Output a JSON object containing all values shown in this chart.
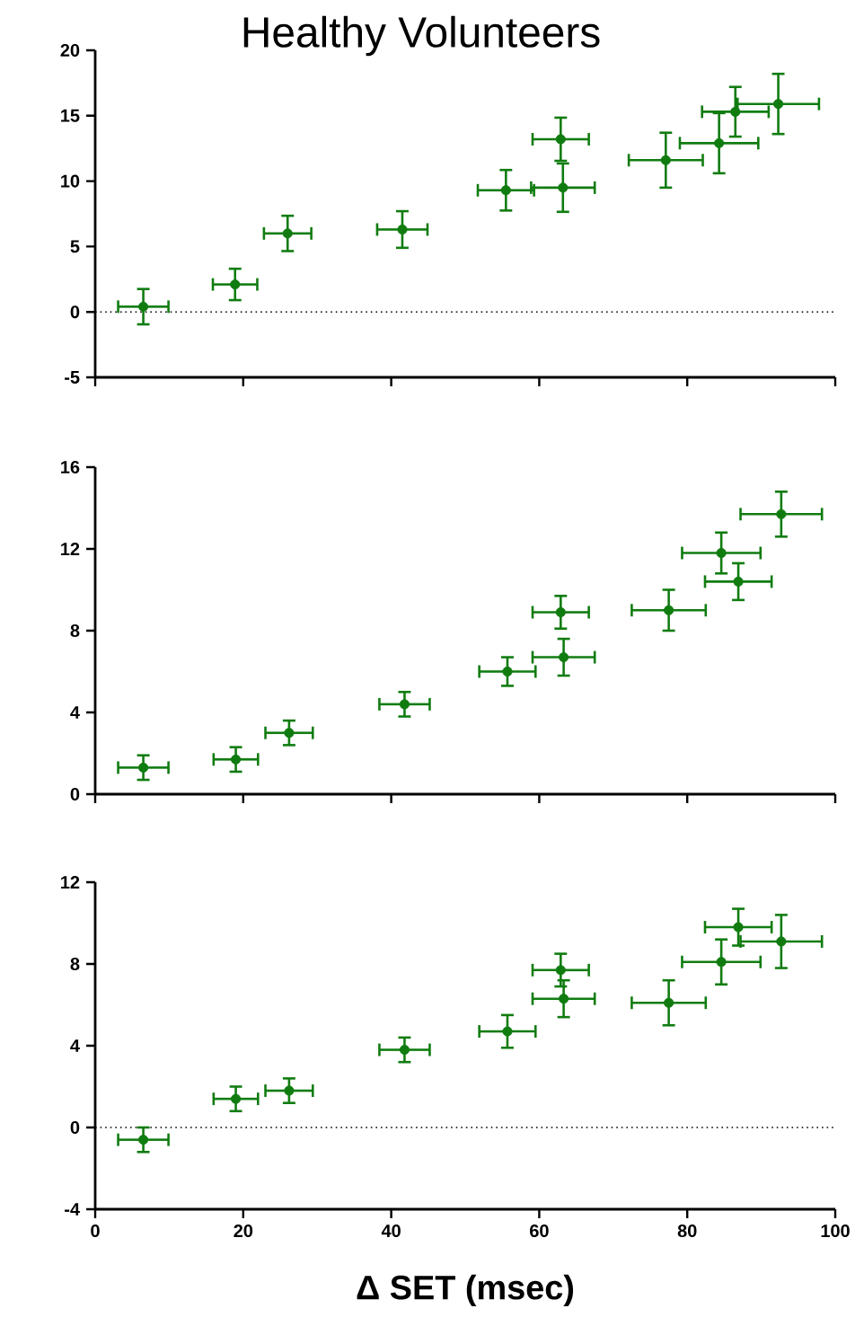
{
  "chart_data": [
    {
      "type": "scatter",
      "title": "Healthy Volunteers",
      "color": "#107c10",
      "marker": "circle",
      "tick_labels": "y",
      "x": [
        6.5,
        18.9,
        26,
        41.5,
        55.5,
        62.9,
        63.2,
        77.1,
        84.3,
        86.5,
        92.3
      ],
      "values": [
        0.4,
        2.1,
        6.0,
        6.3,
        9.3,
        13.2,
        9.5,
        11.6,
        12.9,
        15.3,
        15.9
      ],
      "errors": [
        1.35,
        1.2,
        1.35,
        1.4,
        1.55,
        1.65,
        1.85,
        2.1,
        2.3,
        1.9,
        2.3
      ],
      "xerrors": [
        3.4,
        3,
        3.2,
        3.4,
        3.8,
        3.8,
        4.3,
        5,
        5.3,
        4.5,
        5.5
      ],
      "xlim": [
        0,
        100
      ],
      "xticks": [
        0,
        20,
        40,
        60,
        80,
        100
      ],
      "ylim": [
        -5,
        20
      ],
      "yticks": [
        -5,
        0,
        5,
        10,
        15,
        20
      ],
      "ref_lines": [
        {
          "axis": "y",
          "value": 0,
          "line_style": "dotted"
        }
      ]
    },
    {
      "type": "scatter",
      "color": "#107c10",
      "marker": "circle",
      "tick_labels": "y",
      "x": [
        6.5,
        19,
        26.2,
        41.8,
        55.7,
        62.9,
        63.3,
        77.5,
        84.6,
        86.9,
        92.7
      ],
      "values": [
        1.3,
        1.7,
        3.0,
        4.4,
        6.0,
        8.9,
        6.7,
        9.0,
        11.8,
        10.4,
        13.7
      ],
      "errors": [
        0.6,
        0.6,
        0.6,
        0.6,
        0.7,
        0.8,
        0.9,
        1.0,
        1.0,
        0.9,
        1.1
      ],
      "xerrors": [
        3.4,
        3,
        3.2,
        3.4,
        3.8,
        3.8,
        4.2,
        5,
        5.3,
        4.5,
        5.5
      ],
      "xlim": [
        0,
        100
      ],
      "xticks": [
        0,
        20,
        40,
        60,
        80,
        100
      ],
      "ylim": [
        0,
        16
      ],
      "yticks": [
        0,
        4,
        8,
        12,
        16
      ]
    },
    {
      "type": "scatter",
      "xlabel": "Δ SET (msec)",
      "color": "#107c10",
      "marker": "circle",
      "x": [
        6.5,
        19,
        26.2,
        41.8,
        55.7,
        62.9,
        63.3,
        77.5,
        84.6,
        86.9,
        92.7
      ],
      "values": [
        -0.6,
        1.4,
        1.8,
        3.8,
        4.7,
        7.7,
        6.3,
        6.1,
        8.1,
        9.8,
        9.1
      ],
      "errors": [
        0.6,
        0.6,
        0.6,
        0.6,
        0.8,
        0.8,
        0.9,
        1.1,
        1.1,
        0.9,
        1.3
      ],
      "xerrors": [
        3.4,
        3,
        3.2,
        3.4,
        3.8,
        3.8,
        4.2,
        5,
        5.3,
        4.5,
        5.5
      ],
      "xlim": [
        0,
        100
      ],
      "xticks": [
        0,
        20,
        40,
        60,
        80,
        100
      ],
      "ylim": [
        -4,
        12
      ],
      "yticks": [
        -4,
        0,
        4,
        8,
        12
      ],
      "ref_lines": [
        {
          "axis": "y",
          "value": 0,
          "line_style": "dotted"
        }
      ]
    }
  ]
}
